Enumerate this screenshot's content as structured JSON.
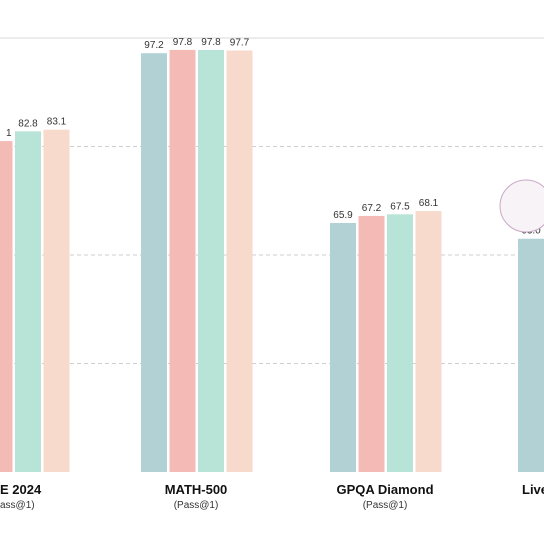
{
  "chart_data": {
    "type": "bar",
    "categories": [
      "E 2024",
      "MATH-500",
      "GPQA Diamond",
      "Live"
    ],
    "subtitles": [
      "ass@1)",
      "(Pass@1)",
      "(Pass@1)",
      ""
    ],
    "series": [
      {
        "values": [
          null,
          97.2,
          65.9,
          63.0
        ]
      },
      {
        "values": [
          null,
          97.8,
          67.2,
          null
        ]
      },
      {
        "values": [
          82.8,
          97.8,
          67.5,
          null
        ]
      },
      {
        "values": [
          83.1,
          97.7,
          68.1,
          null
        ]
      }
    ],
    "value_labels": [
      [
        "",
        "97.2",
        "65.9",
        "63.0"
      ],
      [
        "1",
        "97.8",
        "67.2",
        ""
      ],
      [
        "82.8",
        "97.8",
        "67.5",
        ""
      ],
      [
        "83.1",
        "97.7",
        "68.1",
        ""
      ]
    ],
    "colors": [
      "#b2d1d5",
      "#f4bab6",
      "#b8e3d7",
      "#f8dacd"
    ],
    "ylim": [
      20,
      100
    ],
    "grid": true,
    "grid_lines": [
      40,
      60,
      80
    ],
    "truncated_series_value": 81.0,
    "decorative_circle_color": "#c9a9c7"
  }
}
